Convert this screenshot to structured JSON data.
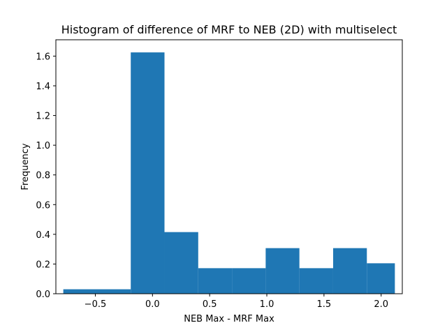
{
  "chart_data": {
    "type": "bar",
    "title": "Histogram of difference of MRF to NEB (2D) with multiselect",
    "xlabel": "NEB Max - MRF Max",
    "ylabel": "Frequency",
    "xlim": [
      -0.845,
      2.185
    ],
    "ylim": [
      0,
      1.71
    ],
    "grid": false,
    "bins": [
      {
        "x0": -0.78,
        "x1": -0.19,
        "value": 0.03
      },
      {
        "x0": -0.19,
        "x1": 0.105,
        "value": 1.625
      },
      {
        "x0": 0.105,
        "x1": 0.4,
        "value": 0.415
      },
      {
        "x0": 0.4,
        "x1": 0.695,
        "value": 0.172
      },
      {
        "x0": 0.695,
        "x1": 0.99,
        "value": 0.172
      },
      {
        "x0": 0.99,
        "x1": 1.285,
        "value": 0.307
      },
      {
        "x0": 1.285,
        "x1": 1.58,
        "value": 0.172
      },
      {
        "x0": 1.58,
        "x1": 1.875,
        "value": 0.307
      },
      {
        "x0": 1.875,
        "x1": 2.12,
        "value": 0.205
      }
    ],
    "xticks": [
      {
        "value": -0.5,
        "label": "−0.5"
      },
      {
        "value": 0.0,
        "label": "0.0"
      },
      {
        "value": 0.5,
        "label": "0.5"
      },
      {
        "value": 1.0,
        "label": "1.0"
      },
      {
        "value": 1.5,
        "label": "1.5"
      },
      {
        "value": 2.0,
        "label": "2.0"
      }
    ],
    "yticks": [
      {
        "value": 0.0,
        "label": "0.0"
      },
      {
        "value": 0.2,
        "label": "0.2"
      },
      {
        "value": 0.4,
        "label": "0.4"
      },
      {
        "value": 0.6,
        "label": "0.6"
      },
      {
        "value": 0.8,
        "label": "0.8"
      },
      {
        "value": 1.0,
        "label": "1.0"
      },
      {
        "value": 1.2,
        "label": "1.2"
      },
      {
        "value": 1.4,
        "label": "1.4"
      },
      {
        "value": 1.6,
        "label": "1.6"
      }
    ],
    "bar_color": "#1f77b4"
  }
}
